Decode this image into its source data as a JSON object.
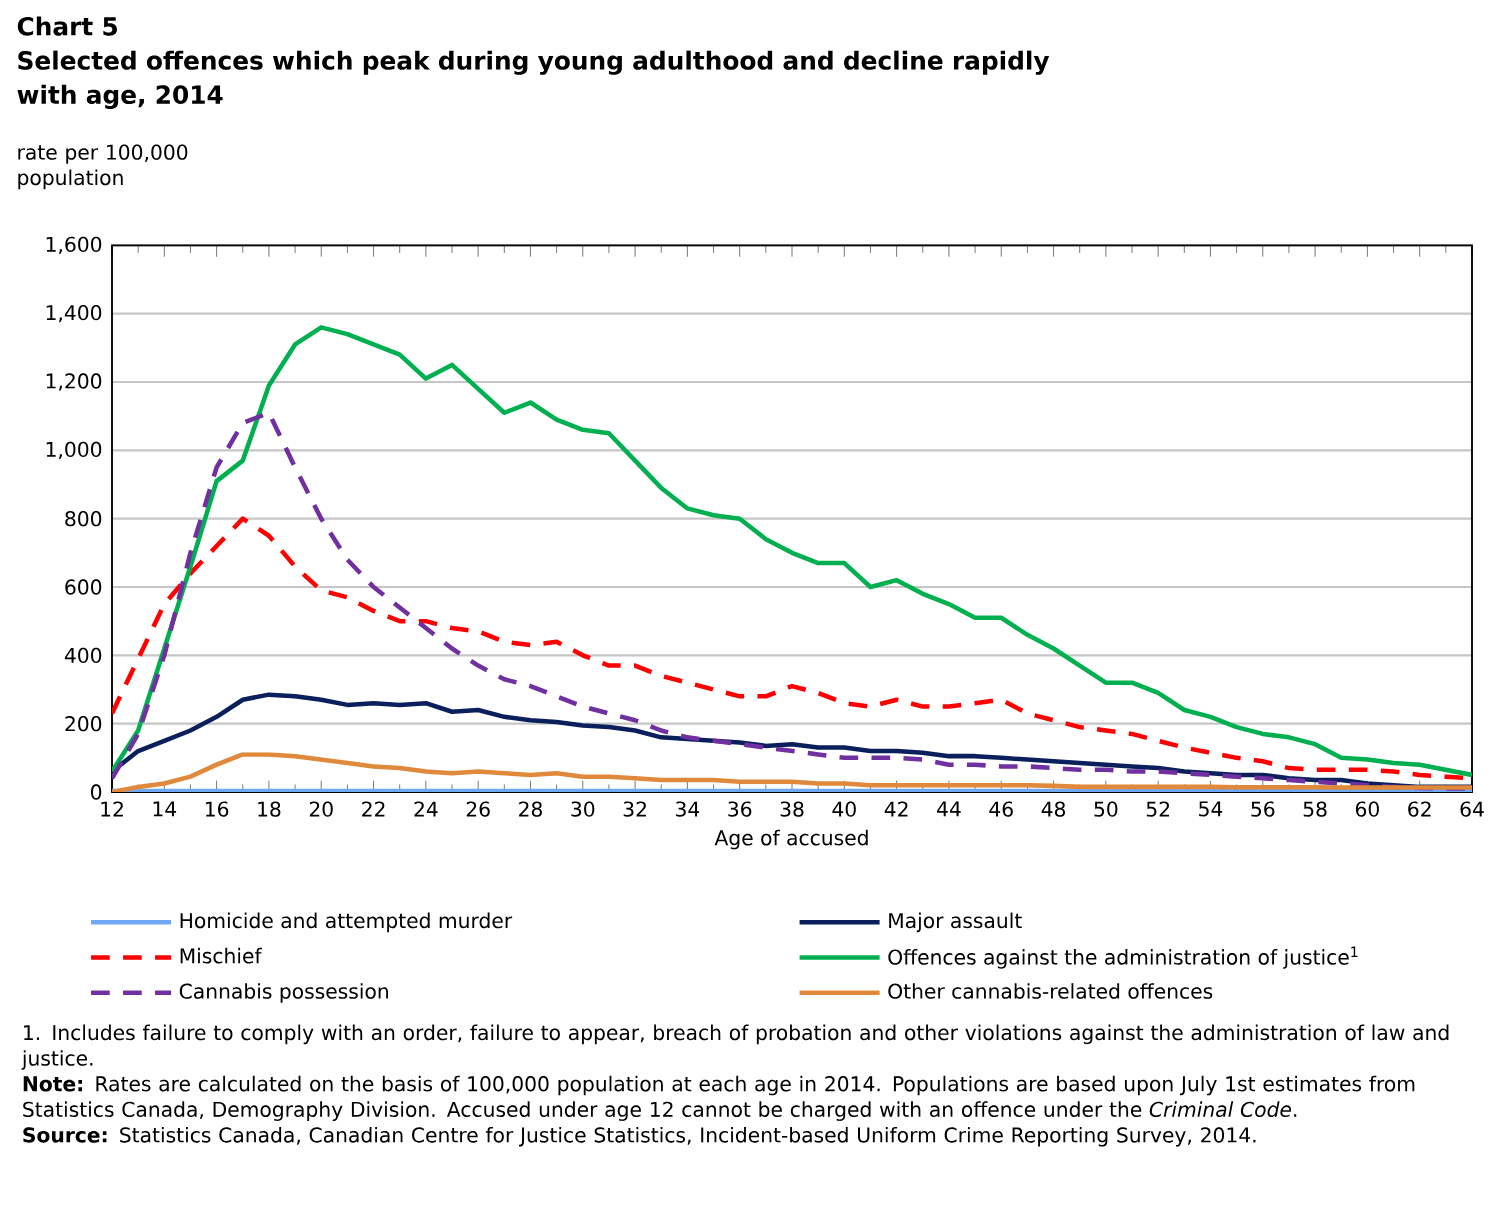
{
  "chart_data": {
    "type": "line",
    "title": "Chart 5",
    "subtitle": "Selected offences which peak during young adulthood and decline rapidly with age, 2014",
    "xlabel": "Age of accused",
    "ylabel": "rate per 100,000 population",
    "x": [
      12,
      13,
      14,
      15,
      16,
      17,
      18,
      19,
      20,
      21,
      22,
      23,
      24,
      25,
      26,
      27,
      28,
      29,
      30,
      31,
      32,
      33,
      34,
      35,
      36,
      37,
      38,
      39,
      40,
      41,
      42,
      43,
      44,
      45,
      46,
      47,
      48,
      49,
      50,
      51,
      52,
      53,
      54,
      55,
      56,
      57,
      58,
      59,
      60,
      61,
      62,
      63,
      64
    ],
    "xlim": [
      12,
      64
    ],
    "xticks": [
      12,
      14,
      16,
      18,
      20,
      22,
      24,
      26,
      28,
      30,
      32,
      34,
      36,
      38,
      40,
      42,
      44,
      46,
      48,
      50,
      52,
      54,
      56,
      58,
      60,
      62,
      64
    ],
    "ylim": [
      0,
      1600
    ],
    "yticks": [
      0,
      200,
      400,
      600,
      800,
      {
        "value": 1000,
        "label": "1,000"
      },
      {
        "value": 1200,
        "label": "1,200"
      },
      {
        "value": 1400,
        "label": "1,400"
      },
      {
        "value": 1600,
        "label": "1,600"
      }
    ],
    "grid": "y",
    "legend": "bottom",
    "series": [
      {
        "name": "Homicide and attempted murder",
        "color": "#6fa8f5",
        "line_style": "solid",
        "values": [
          3,
          3,
          3,
          3,
          3,
          3,
          3,
          3,
          3,
          3,
          3,
          3,
          3,
          3,
          3,
          3,
          3,
          3,
          3,
          3,
          3,
          3,
          3,
          3,
          3,
          3,
          3,
          3,
          3,
          3,
          3,
          3,
          3,
          3,
          3,
          3,
          3,
          3,
          3,
          3,
          3,
          3,
          3,
          3,
          3,
          3,
          3,
          3,
          3,
          3,
          3,
          3,
          3
        ]
      },
      {
        "name": "Major assault",
        "color": "#0a1f5c",
        "line_style": "solid",
        "values": [
          60,
          120,
          150,
          180,
          220,
          270,
          285,
          280,
          270,
          255,
          260,
          255,
          260,
          235,
          240,
          220,
          210,
          205,
          195,
          190,
          180,
          160,
          155,
          150,
          145,
          135,
          140,
          130,
          130,
          120,
          120,
          115,
          105,
          105,
          100,
          95,
          90,
          85,
          80,
          75,
          70,
          60,
          55,
          50,
          50,
          40,
          35,
          35,
          25,
          20,
          15,
          15,
          15
        ]
      },
      {
        "name": "Mischief",
        "color": "#ff0000",
        "line_style": "dashed",
        "values": [
          230,
          390,
          550,
          640,
          720,
          800,
          750,
          660,
          590,
          570,
          530,
          500,
          500,
          480,
          470,
          440,
          430,
          440,
          400,
          370,
          370,
          340,
          320,
          300,
          280,
          280,
          310,
          290,
          260,
          250,
          270,
          250,
          250,
          260,
          270,
          230,
          210,
          190,
          180,
          170,
          150,
          130,
          115,
          100,
          90,
          70,
          65,
          65,
          65,
          60,
          50,
          45,
          40
        ]
      },
      {
        "name": "Offences against the administration of justice$^{1}$",
        "color": "#00b050",
        "line_style": "solid",
        "values": [
          60,
          180,
          420,
          660,
          910,
          970,
          1190,
          1310,
          1360,
          1340,
          1310,
          1280,
          1210,
          1250,
          1180,
          1110,
          1140,
          1090,
          1060,
          1050,
          970,
          890,
          830,
          810,
          800,
          740,
          700,
          670,
          670,
          600,
          620,
          580,
          550,
          510,
          510,
          460,
          420,
          370,
          320,
          320,
          290,
          240,
          220,
          190,
          170,
          160,
          140,
          100,
          95,
          85,
          80,
          65,
          50
        ]
      },
      {
        "name": "Cannabis possession",
        "color": "#7030a0",
        "line_style": "dashed",
        "values": [
          40,
          170,
          400,
          700,
          950,
          1080,
          1110,
          950,
          800,
          680,
          600,
          540,
          480,
          420,
          370,
          330,
          310,
          280,
          250,
          230,
          210,
          180,
          160,
          150,
          140,
          130,
          120,
          110,
          100,
          100,
          100,
          95,
          80,
          80,
          75,
          75,
          70,
          65,
          65,
          60,
          60,
          55,
          50,
          45,
          40,
          35,
          30,
          25,
          20,
          15,
          12,
          10,
          10
        ]
      },
      {
        "name": "Other cannabis-related offences",
        "color": "#e0893a",
        "line_style": "solid",
        "values": [
          0,
          15,
          25,
          45,
          80,
          110,
          110,
          105,
          95,
          85,
          75,
          70,
          60,
          55,
          60,
          55,
          50,
          55,
          45,
          45,
          40,
          35,
          35,
          35,
          30,
          30,
          30,
          25,
          25,
          20,
          20,
          20,
          20,
          20,
          20,
          20,
          18,
          15,
          15,
          15,
          15,
          15,
          15,
          14,
          14,
          14,
          14,
          13,
          13,
          13,
          13,
          13,
          13
        ]
      }
    ],
    "annotations": [
      "1. Includes failure to comply with an order, failure to appear, breach of probation and other violations against the administration of law and justice.",
      "**Note:** Rates are calculated on the basis of 100,000 population at each age in 2014. Populations are based upon July 1st estimates from Statistics Canada, Demography Division. Accused under age 12 cannot be charged with an offence under the *Criminal Code*.",
      "**Source:** Statistics Canada, Canadian Centre for Justice Statistics, Incident-based Uniform Crime Reporting Survey, 2014."
    ]
  }
}
